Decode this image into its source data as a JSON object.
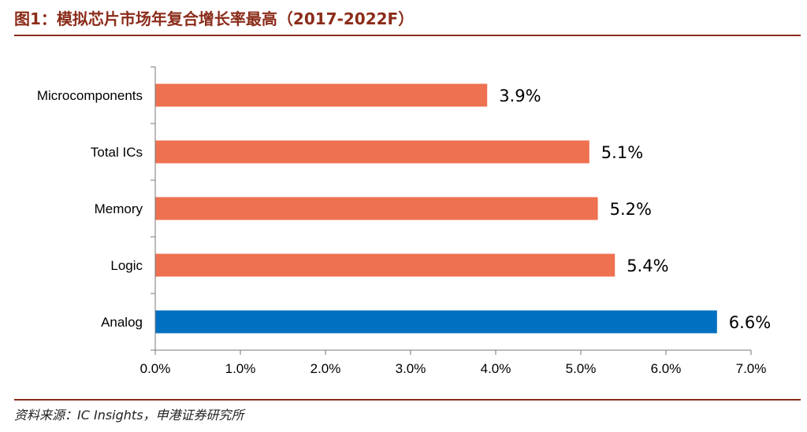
{
  "figure": {
    "title": "图1：模拟芯片市场年复合增长率最高（2017-2022F）",
    "source": "资料来源：IC Insights，申港证券研究所"
  },
  "chart_data": {
    "type": "bar",
    "orientation": "horizontal",
    "categories": [
      "Microcomponents",
      "Total ICs",
      "Memory",
      "Logic",
      "Analog"
    ],
    "values": [
      3.9,
      5.1,
      5.2,
      5.4,
      6.6
    ],
    "value_labels": [
      "3.9%",
      "5.1%",
      "5.2%",
      "5.4%",
      "6.6%"
    ],
    "xlim": [
      0,
      7
    ],
    "x_ticks": [
      0,
      1,
      2,
      3,
      4,
      5,
      6,
      7
    ],
    "x_tick_labels": [
      "0.0%",
      "1.0%",
      "2.0%",
      "3.0%",
      "4.0%",
      "5.0%",
      "6.0%",
      "7.0%"
    ],
    "grid": false,
    "legend": "none",
    "colors": {
      "default": "#EE7150",
      "highlight": "#0070C0",
      "highlight_category": "Analog"
    }
  }
}
